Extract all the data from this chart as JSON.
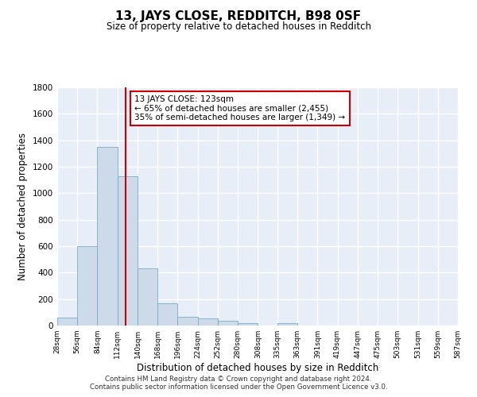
{
  "title": "13, JAYS CLOSE, REDDITCH, B98 0SF",
  "subtitle": "Size of property relative to detached houses in Redditch",
  "xlabel": "Distribution of detached houses by size in Redditch",
  "ylabel": "Number of detached properties",
  "bar_color": "#ccdaea",
  "bar_edge_color": "#7aaac8",
  "background_color": "#e8eef8",
  "grid_color": "white",
  "bins": [
    28,
    56,
    84,
    112,
    140,
    168,
    196,
    224,
    252,
    280,
    308,
    335,
    363,
    391,
    419,
    447,
    475,
    503,
    531,
    559,
    587
  ],
  "values": [
    60,
    600,
    1350,
    1130,
    430,
    170,
    65,
    55,
    35,
    20,
    0,
    20,
    0,
    0,
    0,
    0,
    0,
    0,
    0,
    0
  ],
  "property_size": 123,
  "red_line_color": "#cc0000",
  "annotation_line1": "13 JAYS CLOSE: 123sqm",
  "annotation_line2": "← 65% of detached houses are smaller (2,455)",
  "annotation_line3": "35% of semi-detached houses are larger (1,349) →",
  "annotation_box_color": "white",
  "annotation_box_edge": "#cc0000",
  "ylim": [
    0,
    1800
  ],
  "footer": "Contains HM Land Registry data © Crown copyright and database right 2024.\nContains public sector information licensed under the Open Government Licence v3.0.",
  "tick_labels": [
    "28sqm",
    "56sqm",
    "84sqm",
    "112sqm",
    "140sqm",
    "168sqm",
    "196sqm",
    "224sqm",
    "252sqm",
    "280sqm",
    "308sqm",
    "335sqm",
    "363sqm",
    "391sqm",
    "419sqm",
    "447sqm",
    "475sqm",
    "503sqm",
    "531sqm",
    "559sqm",
    "587sqm"
  ]
}
